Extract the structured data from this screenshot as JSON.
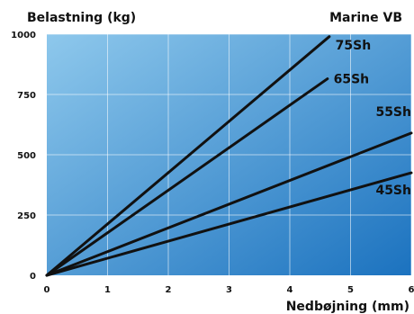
{
  "chart_data": {
    "type": "line",
    "title": "Marine VB",
    "ylabel": "Belastning (kg)",
    "xlabel": "Nedbøjning (mm)",
    "xlim": [
      0,
      6
    ],
    "ylim": [
      0,
      1000
    ],
    "x_ticks": [
      "0",
      "1",
      "2",
      "3",
      "4",
      "5",
      "6"
    ],
    "y_ticks": [
      "0",
      "250",
      "500",
      "750",
      "1000"
    ],
    "grid": true,
    "background_gradient": [
      "#8ec8ec",
      "#1b72bf"
    ],
    "line_color": "#111111",
    "series": [
      {
        "name": "75Sh",
        "x": [
          0,
          4.65
        ],
        "y": [
          0,
          990
        ]
      },
      {
        "name": "65Sh",
        "x": [
          0,
          4.62
        ],
        "y": [
          0,
          815
        ]
      },
      {
        "name": "55Sh",
        "x": [
          0,
          6.0
        ],
        "y": [
          0,
          590
        ]
      },
      {
        "name": "45Sh",
        "x": [
          0,
          6.0
        ],
        "y": [
          0,
          425
        ]
      }
    ]
  }
}
